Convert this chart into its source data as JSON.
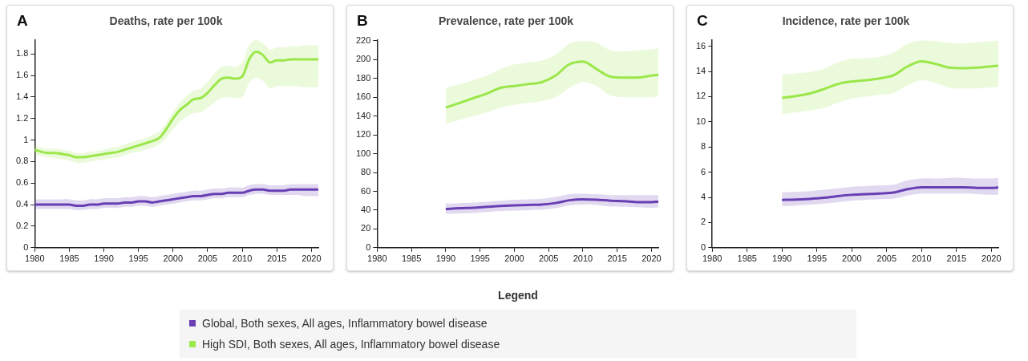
{
  "chart_data": [
    {
      "type": "line",
      "title": "Deaths, rate per 100k",
      "annotations": [
        "A"
      ],
      "legend": "bottom",
      "legend_title": "Legend",
      "marker": "none",
      "line_style": "solid",
      "grid": false,
      "x": [
        1980,
        1981,
        1982,
        1983,
        1984,
        1985,
        1986,
        1987,
        1988,
        1989,
        1990,
        1991,
        1992,
        1993,
        1994,
        1995,
        1996,
        1997,
        1998,
        1999,
        2000,
        2001,
        2002,
        2003,
        2004,
        2005,
        2006,
        2007,
        2008,
        2009,
        2010,
        2011,
        2012,
        2013,
        2014,
        2015,
        2016,
        2017,
        2018,
        2019,
        2020,
        2021
      ],
      "xlim": [
        1980,
        2021
      ],
      "xticks": [
        1980,
        1985,
        1990,
        1995,
        2000,
        2005,
        2010,
        2015,
        2020
      ],
      "ylim": [
        0,
        1.93
      ],
      "yticks": [
        0,
        0.2,
        0.4,
        0.6,
        0.8,
        1,
        1.2,
        1.4,
        1.6,
        1.8
      ],
      "series": [
        {
          "name": "Global, Both sexes, All ages, Inflammatory bowel disease",
          "color": "#6a3fb5",
          "values": [
            0.4,
            0.4,
            0.4,
            0.4,
            0.4,
            0.4,
            0.39,
            0.39,
            0.4,
            0.4,
            0.41,
            0.41,
            0.41,
            0.42,
            0.42,
            0.43,
            0.43,
            0.42,
            0.43,
            0.44,
            0.45,
            0.46,
            0.47,
            0.48,
            0.48,
            0.49,
            0.5,
            0.5,
            0.51,
            0.51,
            0.51,
            0.53,
            0.54,
            0.54,
            0.53,
            0.53,
            0.53,
            0.54,
            0.54,
            0.54,
            0.54,
            0.54
          ],
          "lower": [
            0.36,
            0.36,
            0.36,
            0.36,
            0.36,
            0.36,
            0.35,
            0.35,
            0.36,
            0.36,
            0.37,
            0.37,
            0.37,
            0.38,
            0.38,
            0.39,
            0.39,
            0.38,
            0.39,
            0.4,
            0.41,
            0.42,
            0.43,
            0.44,
            0.44,
            0.45,
            0.46,
            0.46,
            0.47,
            0.47,
            0.47,
            0.49,
            0.5,
            0.5,
            0.49,
            0.49,
            0.49,
            0.49,
            0.49,
            0.48,
            0.48,
            0.48
          ],
          "upper": [
            0.45,
            0.45,
            0.45,
            0.45,
            0.45,
            0.45,
            0.44,
            0.44,
            0.45,
            0.45,
            0.46,
            0.46,
            0.46,
            0.47,
            0.47,
            0.48,
            0.48,
            0.47,
            0.48,
            0.49,
            0.5,
            0.51,
            0.52,
            0.53,
            0.53,
            0.54,
            0.55,
            0.55,
            0.56,
            0.56,
            0.56,
            0.58,
            0.59,
            0.59,
            0.58,
            0.58,
            0.58,
            0.59,
            0.59,
            0.59,
            0.59,
            0.59
          ]
        },
        {
          "name": "High SDI, Both sexes, All ages, Inflammatory bowel disease",
          "color": "#9be84a",
          "values": [
            0.91,
            0.89,
            0.88,
            0.88,
            0.87,
            0.86,
            0.84,
            0.84,
            0.85,
            0.86,
            0.87,
            0.88,
            0.89,
            0.91,
            0.93,
            0.95,
            0.97,
            0.99,
            1.02,
            1.1,
            1.2,
            1.28,
            1.33,
            1.38,
            1.39,
            1.44,
            1.51,
            1.57,
            1.58,
            1.57,
            1.59,
            1.75,
            1.82,
            1.79,
            1.72,
            1.74,
            1.74,
            1.75,
            1.75,
            1.75,
            1.75,
            1.75
          ],
          "lower": [
            0.86,
            0.85,
            0.84,
            0.83,
            0.82,
            0.81,
            0.79,
            0.79,
            0.8,
            0.81,
            0.82,
            0.83,
            0.84,
            0.86,
            0.88,
            0.89,
            0.91,
            0.93,
            0.96,
            1.02,
            1.1,
            1.17,
            1.22,
            1.25,
            1.26,
            1.3,
            1.35,
            1.39,
            1.4,
            1.39,
            1.4,
            1.53,
            1.58,
            1.55,
            1.48,
            1.5,
            1.5,
            1.5,
            1.5,
            1.49,
            1.49,
            1.49
          ],
          "upper": [
            0.95,
            0.93,
            0.92,
            0.92,
            0.91,
            0.9,
            0.88,
            0.88,
            0.89,
            0.9,
            0.91,
            0.93,
            0.94,
            0.96,
            0.98,
            1.0,
            1.02,
            1.05,
            1.08,
            1.16,
            1.26,
            1.35,
            1.41,
            1.46,
            1.48,
            1.54,
            1.62,
            1.68,
            1.69,
            1.68,
            1.72,
            1.88,
            1.93,
            1.9,
            1.84,
            1.86,
            1.86,
            1.87,
            1.87,
            1.88,
            1.88,
            1.88
          ]
        }
      ]
    },
    {
      "type": "line",
      "title": "Prevalence, rate per 100k",
      "annotations": [
        "B"
      ],
      "marker": "none",
      "line_style": "solid",
      "grid": false,
      "x": [
        1990,
        1992,
        1994,
        1996,
        1998,
        2000,
        2002,
        2004,
        2006,
        2008,
        2010,
        2012,
        2014,
        2016,
        2018,
        2020,
        2021
      ],
      "xlim": [
        1980,
        2021
      ],
      "xticks": [
        1980,
        1985,
        1990,
        1995,
        2000,
        2005,
        2010,
        2015,
        2020
      ],
      "ylim": [
        0,
        221
      ],
      "yticks": [
        0,
        20,
        40,
        60,
        80,
        100,
        120,
        140,
        160,
        180,
        200,
        220
      ],
      "series": [
        {
          "color": "#6a3fb5",
          "values": [
            41,
            42,
            42.5,
            43.5,
            44.5,
            45,
            45.5,
            46,
            47.5,
            50.5,
            51.5,
            51,
            50,
            49.5,
            48.5,
            48.5,
            49
          ],
          "lower": [
            36,
            36.5,
            37,
            38,
            39,
            39.5,
            40,
            40.5,
            42,
            45,
            46,
            45.5,
            44,
            43.5,
            43,
            42.5,
            43
          ],
          "upper": [
            47,
            47.5,
            48,
            49,
            50,
            51,
            51.5,
            52,
            54,
            57,
            57.5,
            57,
            56,
            56,
            56,
            56,
            56
          ]
        },
        {
          "color": "#9be84a",
          "values": [
            149,
            154,
            159,
            164,
            170,
            172,
            174,
            176,
            183,
            195,
            198,
            190,
            182,
            181,
            181,
            183,
            184
          ],
          "lower": [
            132,
            136,
            140,
            144,
            149,
            152,
            154,
            156,
            160,
            170,
            176,
            172,
            162,
            160,
            160,
            160,
            161
          ],
          "upper": [
            170,
            174,
            178,
            183,
            190,
            195,
            197,
            199,
            205,
            217,
            220,
            218,
            210,
            209,
            210,
            211,
            212
          ]
        }
      ]
    },
    {
      "type": "line",
      "title": "Incidence, rate per 100k",
      "annotations": [
        "C"
      ],
      "marker": "none",
      "line_style": "solid",
      "grid": false,
      "x": [
        1990,
        1992,
        1994,
        1996,
        1998,
        2000,
        2002,
        2004,
        2006,
        2008,
        2010,
        2012,
        2014,
        2016,
        2018,
        2020,
        2021
      ],
      "xlim": [
        1980,
        2021
      ],
      "xticks": [
        1980,
        1985,
        1990,
        1995,
        2000,
        2005,
        2010,
        2015,
        2020
      ],
      "ylim": [
        0,
        16.5
      ],
      "yticks": [
        0,
        2,
        4,
        6,
        8,
        10,
        12,
        14,
        16
      ],
      "series": [
        {
          "color": "#6a3fb5",
          "values": [
            3.8,
            3.82,
            3.88,
            3.97,
            4.1,
            4.2,
            4.25,
            4.3,
            4.38,
            4.65,
            4.8,
            4.8,
            4.8,
            4.8,
            4.75,
            4.75,
            4.78
          ],
          "lower": [
            3.3,
            3.35,
            3.42,
            3.5,
            3.62,
            3.75,
            3.8,
            3.85,
            3.9,
            4.15,
            4.3,
            4.3,
            4.3,
            4.3,
            4.25,
            4.2,
            4.2
          ],
          "upper": [
            4.4,
            4.45,
            4.5,
            4.6,
            4.72,
            4.85,
            4.9,
            4.95,
            5.0,
            5.35,
            5.5,
            5.5,
            5.55,
            5.55,
            5.5,
            5.5,
            5.55
          ]
        },
        {
          "color": "#9be84a",
          "values": [
            11.9,
            12.05,
            12.25,
            12.6,
            13.0,
            13.2,
            13.3,
            13.45,
            13.7,
            14.4,
            14.8,
            14.6,
            14.3,
            14.25,
            14.3,
            14.4,
            14.45
          ],
          "lower": [
            10.6,
            10.75,
            10.9,
            11.1,
            11.5,
            11.85,
            12.0,
            12.15,
            12.3,
            12.9,
            13.3,
            13.1,
            12.7,
            12.65,
            12.65,
            12.75,
            12.8
          ],
          "upper": [
            13.75,
            13.85,
            13.95,
            14.2,
            14.7,
            15.0,
            15.05,
            15.15,
            15.5,
            16.2,
            16.45,
            16.4,
            16.25,
            16.25,
            16.3,
            16.4,
            16.45
          ]
        }
      ]
    }
  ]
}
